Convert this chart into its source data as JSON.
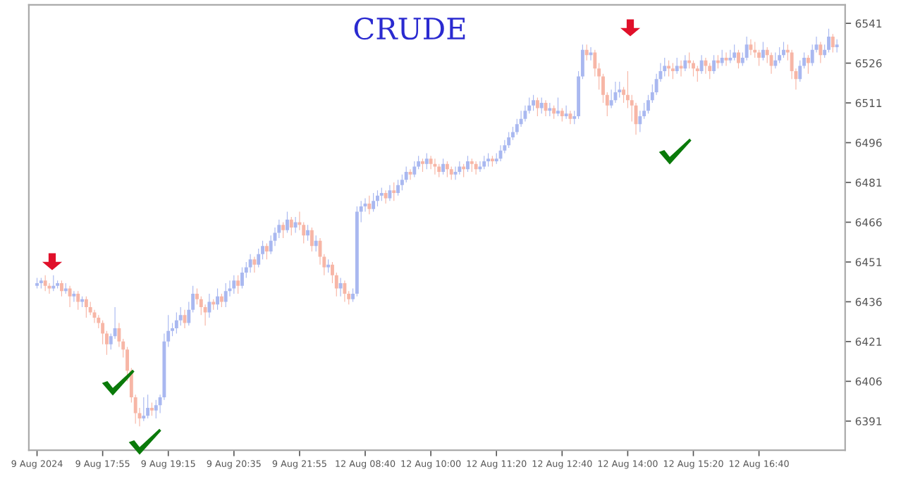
{
  "chart_data": {
    "type": "candlestick",
    "title": "CRUDE",
    "categories": [
      "9 Aug 2024",
      null,
      null,
      null,
      null,
      null,
      null,
      null,
      null,
      null,
      null,
      null,
      null,
      null,
      null,
      null,
      "9 Aug 17:55",
      null,
      null,
      null,
      null,
      null,
      null,
      null,
      null,
      null,
      null,
      null,
      null,
      null,
      null,
      null,
      "9 Aug 19:15",
      null,
      null,
      null,
      null,
      null,
      null,
      null,
      null,
      null,
      null,
      null,
      null,
      null,
      null,
      null,
      "9 Aug 20:35",
      null,
      null,
      null,
      null,
      null,
      null,
      null,
      null,
      null,
      null,
      null,
      null,
      null,
      null,
      null,
      "9 Aug 21:55",
      null,
      null,
      null,
      null,
      null,
      null,
      null,
      null,
      null,
      null,
      null,
      null,
      null,
      null,
      null,
      "12 Aug 08:40",
      null,
      null,
      null,
      null,
      null,
      null,
      null,
      null,
      null,
      null,
      null,
      null,
      null,
      null,
      null,
      "12 Aug 10:00",
      null,
      null,
      null,
      null,
      null,
      null,
      null,
      null,
      null,
      null,
      null,
      null,
      null,
      null,
      null,
      "12 Aug 11:20",
      null,
      null,
      null,
      null,
      null,
      null,
      null,
      null,
      null,
      null,
      null,
      null,
      null,
      null,
      null,
      "12 Aug 12:40",
      null,
      null,
      null,
      null,
      null,
      null,
      null,
      null,
      null,
      null,
      null,
      null,
      null,
      null,
      null,
      "12 Aug 14:00",
      null,
      null,
      null,
      null,
      null,
      null,
      null,
      null,
      null,
      null,
      null,
      null,
      null,
      null,
      null,
      "12 Aug 15:20",
      null,
      null,
      null,
      null,
      null,
      null,
      null,
      null,
      null,
      null,
      null,
      null,
      null,
      null,
      null,
      "12 Aug 16:40",
      null,
      null,
      null,
      null,
      null,
      null,
      null,
      null,
      null,
      null,
      null,
      null,
      null,
      null,
      null,
      null,
      null,
      null,
      null
    ],
    "ohlc": [
      [
        6442,
        6445,
        6441,
        6443
      ],
      [
        6443,
        6445,
        6441,
        6444
      ],
      [
        6444,
        6446,
        6440,
        6442
      ],
      [
        6442,
        6443,
        6439,
        6441
      ],
      [
        6441,
        6446,
        6440,
        6442
      ],
      [
        6442,
        6444,
        6441,
        6443
      ],
      [
        6443,
        6444,
        6438,
        6440
      ],
      [
        6440,
        6443,
        6439,
        6441
      ],
      [
        6441,
        6442,
        6434,
        6438
      ],
      [
        6438,
        6440,
        6436,
        6439
      ],
      [
        6439,
        6440,
        6433,
        6436
      ],
      [
        6436,
        6438,
        6434,
        6437
      ],
      [
        6437,
        6438,
        6430,
        6434
      ],
      [
        6434,
        6436,
        6431,
        6432
      ],
      [
        6432,
        6433,
        6428,
        6430
      ],
      [
        6430,
        6431,
        6426,
        6428
      ],
      [
        6428,
        6429,
        6420,
        6424
      ],
      [
        6424,
        6425,
        6416,
        6420
      ],
      [
        6420,
        6424,
        6418,
        6423
      ],
      [
        6423,
        6434,
        6422,
        6426
      ],
      [
        6426,
        6428,
        6419,
        6421
      ],
      [
        6421,
        6422,
        6415,
        6418
      ],
      [
        6418,
        6419,
        6406,
        6410
      ],
      [
        6410,
        6411,
        6398,
        6400
      ],
      [
        6400,
        6401,
        6390,
        6394
      ],
      [
        6394,
        6396,
        6389,
        6392
      ],
      [
        6392,
        6400,
        6391,
        6393
      ],
      [
        6393,
        6401,
        6392,
        6396
      ],
      [
        6396,
        6398,
        6393,
        6395
      ],
      [
        6395,
        6399,
        6392,
        6397
      ],
      [
        6397,
        6401,
        6394,
        6400
      ],
      [
        6400,
        6424,
        6399,
        6421
      ],
      [
        6421,
        6431,
        6419,
        6425
      ],
      [
        6425,
        6428,
        6423,
        6426
      ],
      [
        6426,
        6432,
        6424,
        6429
      ],
      [
        6429,
        6434,
        6427,
        6431
      ],
      [
        6431,
        6433,
        6426,
        6428
      ],
      [
        6428,
        6436,
        6427,
        6433
      ],
      [
        6433,
        6442,
        6432,
        6439
      ],
      [
        6439,
        6441,
        6435,
        6437
      ],
      [
        6437,
        6438,
        6431,
        6434
      ],
      [
        6434,
        6435,
        6427,
        6432
      ],
      [
        6432,
        6439,
        6430,
        6436
      ],
      [
        6436,
        6437,
        6433,
        6435
      ],
      [
        6435,
        6441,
        6433,
        6438
      ],
      [
        6438,
        6439,
        6434,
        6436
      ],
      [
        6436,
        6443,
        6434,
        6440
      ],
      [
        6440,
        6444,
        6438,
        6441
      ],
      [
        6441,
        6446,
        6439,
        6444
      ],
      [
        6444,
        6446,
        6439,
        6442
      ],
      [
        6442,
        6449,
        6441,
        6447
      ],
      [
        6447,
        6451,
        6445,
        6449
      ],
      [
        6449,
        6454,
        6447,
        6452
      ],
      [
        6452,
        6453,
        6447,
        6450
      ],
      [
        6450,
        6456,
        6449,
        6454
      ],
      [
        6454,
        6459,
        6452,
        6457
      ],
      [
        6457,
        6458,
        6452,
        6455
      ],
      [
        6455,
        6461,
        6454,
        6459
      ],
      [
        6459,
        6464,
        6457,
        6462
      ],
      [
        6462,
        6467,
        6460,
        6465
      ],
      [
        6465,
        6466,
        6460,
        6463
      ],
      [
        6463,
        6470,
        6462,
        6467
      ],
      [
        6467,
        6468,
        6461,
        6464
      ],
      [
        6464,
        6468,
        6462,
        6466
      ],
      [
        6466,
        6470,
        6463,
        6465
      ],
      [
        6465,
        6466,
        6458,
        6461
      ],
      [
        6461,
        6465,
        6459,
        6463
      ],
      [
        6463,
        6464,
        6455,
        6457
      ],
      [
        6457,
        6461,
        6455,
        6459
      ],
      [
        6459,
        6460,
        6450,
        6453
      ],
      [
        6453,
        6454,
        6446,
        6449
      ],
      [
        6449,
        6452,
        6447,
        6450
      ],
      [
        6450,
        6451,
        6443,
        6446
      ],
      [
        6446,
        6447,
        6438,
        6441
      ],
      [
        6441,
        6445,
        6438,
        6443
      ],
      [
        6443,
        6444,
        6436,
        6439
      ],
      [
        6439,
        6440,
        6435,
        6437
      ],
      [
        6437,
        6441,
        6436,
        6439
      ],
      [
        6439,
        6472,
        6438,
        6470
      ],
      [
        6470,
        6474,
        6466,
        6472
      ],
      [
        6472,
        6475,
        6470,
        6473
      ],
      [
        6473,
        6476,
        6469,
        6471
      ],
      [
        6471,
        6477,
        6470,
        6474
      ],
      [
        6474,
        6478,
        6472,
        6476
      ],
      [
        6476,
        6479,
        6474,
        6477
      ],
      [
        6477,
        6478,
        6473,
        6475
      ],
      [
        6475,
        6480,
        6474,
        6478
      ],
      [
        6478,
        6481,
        6474,
        6477
      ],
      [
        6477,
        6482,
        6476,
        6480
      ],
      [
        6480,
        6484,
        6478,
        6482
      ],
      [
        6482,
        6487,
        6481,
        6485
      ],
      [
        6485,
        6486,
        6482,
        6484
      ],
      [
        6484,
        6489,
        6483,
        6487
      ],
      [
        6487,
        6491,
        6486,
        6489
      ],
      [
        6489,
        6490,
        6485,
        6488
      ],
      [
        6488,
        6492,
        6486,
        6490
      ],
      [
        6490,
        6491,
        6486,
        6488
      ],
      [
        6488,
        6490,
        6484,
        6487
      ],
      [
        6487,
        6488,
        6483,
        6485
      ],
      [
        6485,
        6490,
        6484,
        6488
      ],
      [
        6488,
        6489,
        6483,
        6486
      ],
      [
        6486,
        6487,
        6482,
        6484
      ],
      [
        6484,
        6487,
        6482,
        6485
      ],
      [
        6485,
        6489,
        6484,
        6487
      ],
      [
        6487,
        6488,
        6483,
        6486
      ],
      [
        6486,
        6491,
        6485,
        6489
      ],
      [
        6489,
        6490,
        6485,
        6488
      ],
      [
        6488,
        6489,
        6484,
        6486
      ],
      [
        6486,
        6489,
        6485,
        6487
      ],
      [
        6487,
        6491,
        6486,
        6489
      ],
      [
        6489,
        6492,
        6487,
        6490
      ],
      [
        6490,
        6491,
        6487,
        6489
      ],
      [
        6489,
        6492,
        6488,
        6490
      ],
      [
        6490,
        6495,
        6489,
        6493
      ],
      [
        6493,
        6497,
        6492,
        6495
      ],
      [
        6495,
        6500,
        6494,
        6498
      ],
      [
        6498,
        6502,
        6497,
        6500
      ],
      [
        6500,
        6505,
        6499,
        6503
      ],
      [
        6503,
        6508,
        6502,
        6505
      ],
      [
        6505,
        6510,
        6504,
        6508
      ],
      [
        6508,
        6513,
        6507,
        6510
      ],
      [
        6510,
        6514,
        6508,
        6512
      ],
      [
        6512,
        6513,
        6506,
        6509
      ],
      [
        6509,
        6513,
        6507,
        6511
      ],
      [
        6511,
        6512,
        6506,
        6508
      ],
      [
        6508,
        6511,
        6506,
        6509
      ],
      [
        6509,
        6510,
        6505,
        6507
      ],
      [
        6507,
        6513,
        6506,
        6508
      ],
      [
        6508,
        6509,
        6504,
        6506
      ],
      [
        6506,
        6510,
        6505,
        6507
      ],
      [
        6507,
        6508,
        6503,
        6505
      ],
      [
        6505,
        6508,
        6503,
        6506
      ],
      [
        6506,
        6523,
        6505,
        6521
      ],
      [
        6521,
        6533,
        6520,
        6531
      ],
      [
        6531,
        6533,
        6527,
        6529
      ],
      [
        6529,
        6532,
        6527,
        6530
      ],
      [
        6530,
        6531,
        6521,
        6524
      ],
      [
        6524,
        6526,
        6516,
        6521
      ],
      [
        6521,
        6522,
        6511,
        6514
      ],
      [
        6514,
        6515,
        6506,
        6510
      ],
      [
        6510,
        6516,
        6509,
        6512
      ],
      [
        6512,
        6519,
        6511,
        6515
      ],
      [
        6515,
        6519,
        6513,
        6516
      ],
      [
        6516,
        6517,
        6511,
        6514
      ],
      [
        6514,
        6523,
        6509,
        6512
      ],
      [
        6512,
        6514,
        6504,
        6510
      ],
      [
        6510,
        6511,
        6499,
        6503
      ],
      [
        6503,
        6508,
        6500,
        6506
      ],
      [
        6506,
        6511,
        6505,
        6508
      ],
      [
        6508,
        6514,
        6507,
        6512
      ],
      [
        6512,
        6518,
        6511,
        6515
      ],
      [
        6515,
        6522,
        6514,
        6520
      ],
      [
        6520,
        6526,
        6519,
        6523
      ],
      [
        6523,
        6528,
        6521,
        6525
      ],
      [
        6525,
        6527,
        6521,
        6524
      ],
      [
        6524,
        6526,
        6520,
        6523
      ],
      [
        6523,
        6528,
        6522,
        6525
      ],
      [
        6525,
        6527,
        6521,
        6524
      ],
      [
        6524,
        6529,
        6523,
        6527
      ],
      [
        6527,
        6530,
        6524,
        6526
      ],
      [
        6526,
        6527,
        6521,
        6524
      ],
      [
        6524,
        6525,
        6519,
        6523
      ],
      [
        6523,
        6529,
        6522,
        6527
      ],
      [
        6527,
        6528,
        6522,
        6525
      ],
      [
        6525,
        6526,
        6520,
        6523
      ],
      [
        6523,
        6529,
        6522,
        6527
      ],
      [
        6527,
        6529,
        6524,
        6526
      ],
      [
        6526,
        6531,
        6525,
        6528
      ],
      [
        6528,
        6530,
        6525,
        6527
      ],
      [
        6527,
        6531,
        6526,
        6528
      ],
      [
        6528,
        6533,
        6527,
        6530
      ],
      [
        6530,
        6531,
        6524,
        6526
      ],
      [
        6526,
        6530,
        6525,
        6528
      ],
      [
        6528,
        6536,
        6527,
        6533
      ],
      [
        6533,
        6535,
        6529,
        6531
      ],
      [
        6531,
        6534,
        6528,
        6530
      ],
      [
        6530,
        6531,
        6525,
        6528
      ],
      [
        6528,
        6534,
        6527,
        6531
      ],
      [
        6531,
        6532,
        6526,
        6529
      ],
      [
        6529,
        6530,
        6522,
        6525
      ],
      [
        6525,
        6530,
        6524,
        6527
      ],
      [
        6527,
        6532,
        6526,
        6529
      ],
      [
        6529,
        6534,
        6528,
        6531
      ],
      [
        6531,
        6533,
        6527,
        6530
      ],
      [
        6530,
        6531,
        6520,
        6523
      ],
      [
        6523,
        6524,
        6516,
        6520
      ],
      [
        6520,
        6527,
        6519,
        6525
      ],
      [
        6525,
        6530,
        6524,
        6528
      ],
      [
        6528,
        6529,
        6522,
        6526
      ],
      [
        6526,
        6533,
        6525,
        6531
      ],
      [
        6531,
        6536,
        6530,
        6533
      ],
      [
        6533,
        6534,
        6526,
        6529
      ],
      [
        6529,
        6533,
        6528,
        6531
      ],
      [
        6531,
        6539,
        6530,
        6536
      ],
      [
        6536,
        6537,
        6530,
        6532
      ],
      [
        6532,
        6535,
        6530,
        6533
      ]
    ],
    "colors": [
      "#a9b8f0",
      "#a9b8f0",
      "#f7b6a6",
      "#f7b6a6",
      "#a9b8f0",
      "#a9b8f0",
      "#f7b6a6",
      "#a9b8f0",
      "#f7b6a6",
      "#a9b8f0",
      "#f7b6a6",
      "#a9b8f0",
      "#f7b6a6",
      "#f7b6a6",
      "#f7b6a6",
      "#f7b6a6",
      "#f7b6a6",
      "#f7b6a6",
      "#a9b8f0",
      "#a9b8f0",
      "#f7b6a6",
      "#f7b6a6",
      "#f7b6a6",
      "#f7b6a6",
      "#f7b6a6",
      "#f7b6a6",
      "#a9b8f0",
      "#a9b8f0",
      "#f7b6a6",
      "#a9b8f0",
      "#a9b8f0",
      "#a9b8f0",
      "#a9b8f0",
      "#a9b8f0",
      "#a9b8f0",
      "#a9b8f0",
      "#f7b6a6",
      "#a9b8f0",
      "#a9b8f0",
      "#f7b6a6",
      "#f7b6a6",
      "#f7b6a6",
      "#a9b8f0",
      "#f7b6a6",
      "#a9b8f0",
      "#f7b6a6",
      "#a9b8f0",
      "#a9b8f0",
      "#a9b8f0",
      "#f7b6a6",
      "#a9b8f0",
      "#a9b8f0",
      "#a9b8f0",
      "#f7b6a6",
      "#a9b8f0",
      "#a9b8f0",
      "#f7b6a6",
      "#a9b8f0",
      "#a9b8f0",
      "#a9b8f0",
      "#f7b6a6",
      "#a9b8f0",
      "#f7b6a6",
      "#a9b8f0",
      "#f7b6a6",
      "#f7b6a6",
      "#a9b8f0",
      "#f7b6a6",
      "#a9b8f0",
      "#f7b6a6",
      "#f7b6a6",
      "#a9b8f0",
      "#f7b6a6",
      "#f7b6a6",
      "#a9b8f0",
      "#f7b6a6",
      "#f7b6a6",
      "#a9b8f0",
      "#a9b8f0",
      "#a9b8f0",
      "#a9b8f0",
      "#f7b6a6",
      "#a9b8f0",
      "#a9b8f0",
      "#a9b8f0",
      "#f7b6a6",
      "#a9b8f0",
      "#f7b6a6",
      "#a9b8f0",
      "#a9b8f0",
      "#a9b8f0",
      "#f7b6a6",
      "#a9b8f0",
      "#a9b8f0",
      "#f7b6a6",
      "#a9b8f0",
      "#f7b6a6",
      "#f7b6a6",
      "#f7b6a6",
      "#a9b8f0",
      "#f7b6a6",
      "#f7b6a6",
      "#a9b8f0",
      "#a9b8f0",
      "#f7b6a6",
      "#a9b8f0",
      "#f7b6a6",
      "#f7b6a6",
      "#a9b8f0",
      "#a9b8f0",
      "#a9b8f0",
      "#f7b6a6",
      "#a9b8f0",
      "#a9b8f0",
      "#a9b8f0",
      "#a9b8f0",
      "#a9b8f0",
      "#a9b8f0",
      "#a9b8f0",
      "#a9b8f0",
      "#a9b8f0",
      "#a9b8f0",
      "#f7b6a6",
      "#a9b8f0",
      "#f7b6a6",
      "#a9b8f0",
      "#f7b6a6",
      "#a9b8f0",
      "#f7b6a6",
      "#a9b8f0",
      "#f7b6a6",
      "#a9b8f0",
      "#a9b8f0",
      "#a9b8f0",
      "#f7b6a6",
      "#a9b8f0",
      "#f7b6a6",
      "#f7b6a6",
      "#f7b6a6",
      "#f7b6a6",
      "#a9b8f0",
      "#a9b8f0",
      "#a9b8f0",
      "#f7b6a6",
      "#f7b6a6",
      "#f7b6a6",
      "#f7b6a6",
      "#a9b8f0",
      "#a9b8f0",
      "#a9b8f0",
      "#a9b8f0",
      "#a9b8f0",
      "#a9b8f0",
      "#a9b8f0",
      "#f7b6a6",
      "#f7b6a6",
      "#a9b8f0",
      "#f7b6a6",
      "#a9b8f0",
      "#f7b6a6",
      "#f7b6a6",
      "#f7b6a6",
      "#a9b8f0",
      "#f7b6a6",
      "#f7b6a6",
      "#a9b8f0",
      "#f7b6a6",
      "#a9b8f0",
      "#f7b6a6",
      "#a9b8f0",
      "#a9b8f0",
      "#f7b6a6",
      "#a9b8f0",
      "#a9b8f0",
      "#f7b6a6",
      "#f7b6a6",
      "#f7b6a6",
      "#a9b8f0",
      "#f7b6a6",
      "#f7b6a6",
      "#a9b8f0",
      "#a9b8f0",
      "#a9b8f0",
      "#f7b6a6",
      "#f7b6a6",
      "#f7b6a6",
      "#a9b8f0",
      "#a9b8f0",
      "#f7b6a6",
      "#a9b8f0",
      "#a9b8f0",
      "#f7b6a6",
      "#a9b8f0",
      "#a9b8f0",
      "#f7b6a6",
      "#a9b8f0"
    ],
    "ylim": [
      6380,
      6548
    ],
    "yticks": [
      6391,
      6406,
      6421,
      6436,
      6451,
      6466,
      6481,
      6496,
      6511,
      6526,
      6541
    ]
  }
}
